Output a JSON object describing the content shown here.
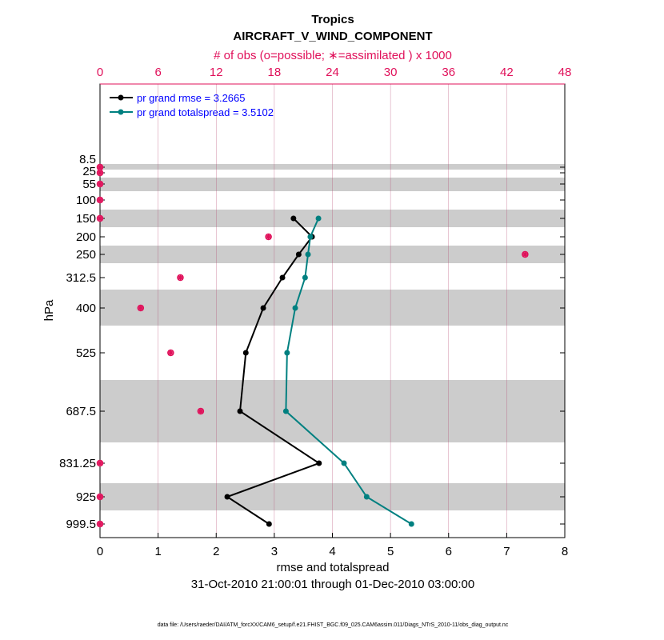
{
  "chart_data": {
    "type": "line",
    "title": "Tropics",
    "subtitle": "AIRCRAFT_V_WIND_COMPONENT",
    "top_axis_label": "# of obs (o=possible; ∗=assimilated ) x 1000",
    "xlabel": "rmse and totalspread",
    "ylabel": "hPa",
    "date_range": "31-Oct-2010 21:00:01 through 01-Dec-2010 03:00:00",
    "footer": "data file: /Users/raeder/DAI/ATM_forcXX/CAM6_setup/f.e21.FHIST_BGC.f09_025.CAM6assim.011/Diags_NTrS_2010-11/obs_diag_output.nc",
    "xlim": [
      0,
      8
    ],
    "x_ticks": [
      "0",
      "1",
      "2",
      "3",
      "4",
      "5",
      "6",
      "7",
      "8"
    ],
    "top_xlim": [
      0,
      48
    ],
    "top_ticks": [
      "0",
      "6",
      "12",
      "18",
      "24",
      "30",
      "36",
      "42",
      "48"
    ],
    "levels": [
      8.5,
      25,
      55,
      100,
      150,
      200,
      250,
      312.5,
      400,
      525,
      687.5,
      831.25,
      925,
      999.5
    ],
    "level_labels": [
      "8.5",
      "25",
      "55",
      "100",
      "150",
      "200",
      "250",
      "312.5",
      "400",
      "525",
      "687.5",
      "831.25",
      "925",
      "999.5"
    ],
    "series": [
      {
        "name": "pr grand rmse = 3.2665",
        "color": "#000000",
        "levels": [
          150,
          200,
          250,
          312.5,
          400,
          525,
          687.5,
          831.25,
          925,
          999.5
        ],
        "values": [
          3.33,
          3.65,
          3.42,
          3.14,
          2.81,
          2.51,
          2.41,
          3.77,
          2.19,
          2.91
        ]
      },
      {
        "name": "pr grand totalspread = 3.5102",
        "color": "#008080",
        "levels": [
          150,
          200,
          250,
          312.5,
          400,
          525,
          687.5,
          831.25,
          925,
          999.5
        ],
        "values": [
          3.76,
          3.62,
          3.58,
          3.53,
          3.36,
          3.22,
          3.2,
          4.2,
          4.59,
          5.36
        ]
      }
    ],
    "obs_count_thousands": {
      "color": "#e0105a",
      "levels": [
        8.5,
        25,
        55,
        100,
        150,
        200,
        250,
        312.5,
        400,
        525,
        687.5,
        831.25,
        925,
        999.5
      ],
      "values": [
        0,
        0,
        0,
        0,
        0,
        17.4,
        43.9,
        8.3,
        4.2,
        7.3,
        10.4,
        0,
        0,
        0
      ]
    },
    "legend_placement": "top-left",
    "grid": "vertical lines at top-axis ticks"
  }
}
